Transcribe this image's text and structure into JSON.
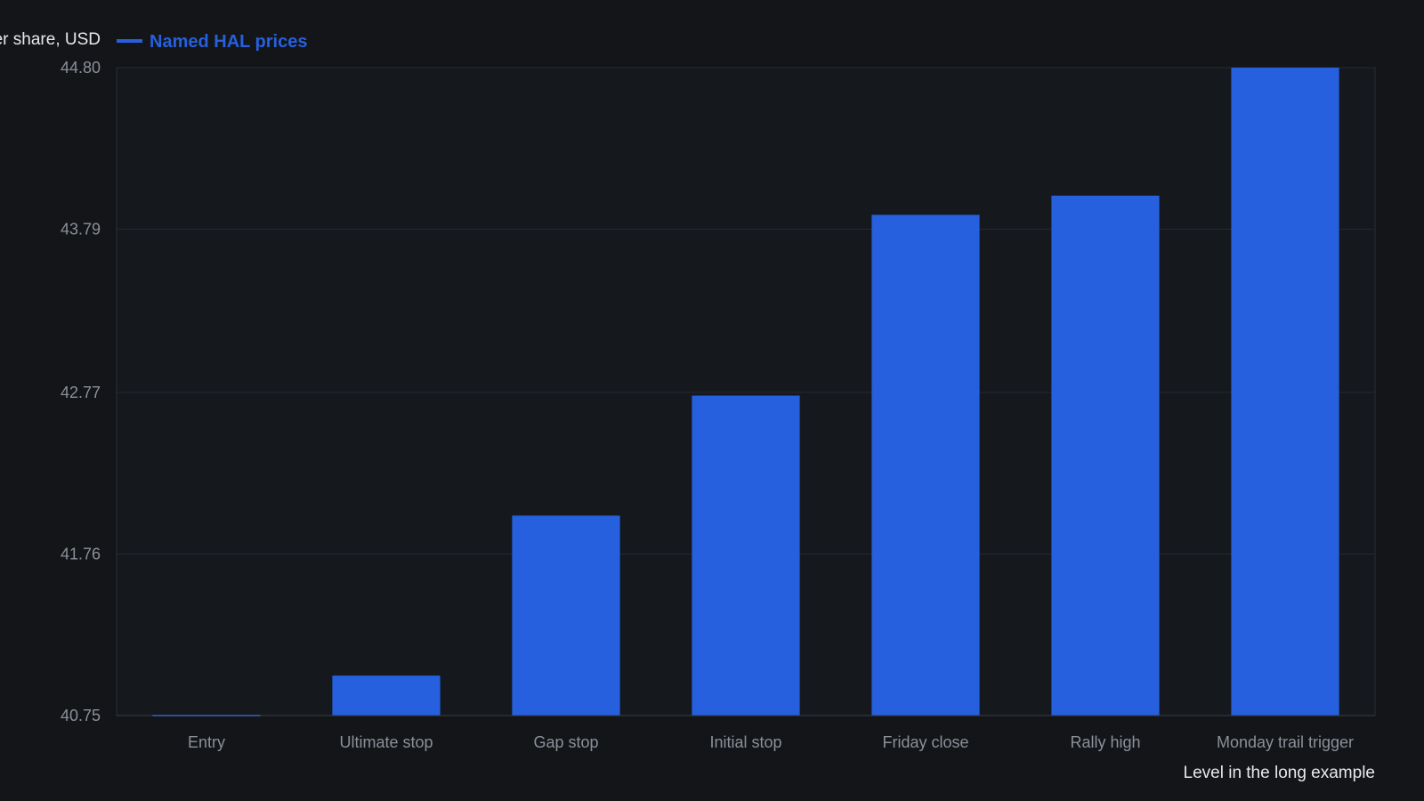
{
  "chart_data": {
    "type": "bar",
    "title": "",
    "ylabel": "Price per share, USD",
    "xlabel": "Level in the long example",
    "legend": {
      "placement": "top-left",
      "entries": [
        "Named HAL prices"
      ]
    },
    "categories": [
      "Entry",
      "Ultimate stop",
      "Gap stop",
      "Initial stop",
      "Friday close",
      "Rally high",
      "Monday trail trigger"
    ],
    "series": [
      {
        "name": "Named HAL prices",
        "color": "#2660de",
        "values": [
          40.75,
          41.0,
          42.0,
          42.75,
          43.88,
          44.0,
          44.8
        ]
      }
    ],
    "ylim": [
      40.75,
      44.8
    ],
    "yticks": [
      "40.75",
      "41.76",
      "42.77",
      "43.79",
      "44.80"
    ],
    "grid": true,
    "colors": {
      "background": "#131519",
      "plot_background": "#15181d",
      "grid": "#262a30",
      "bar": "#2660de"
    }
  }
}
